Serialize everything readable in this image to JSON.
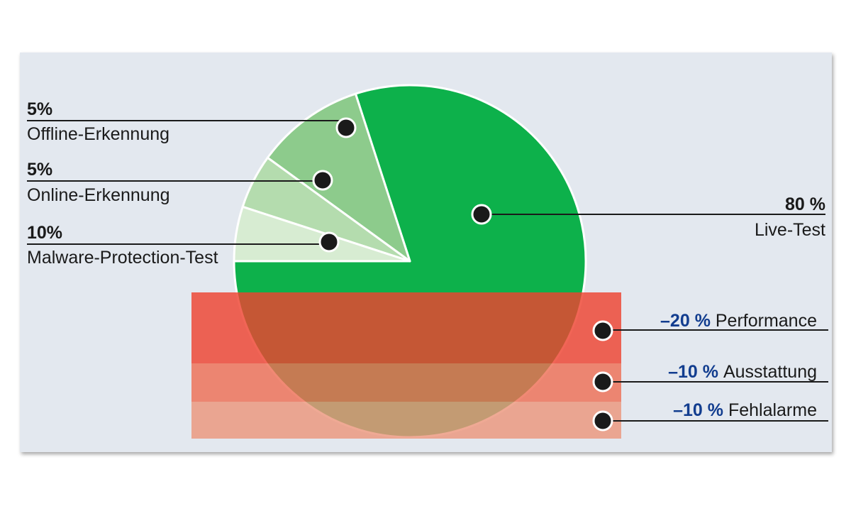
{
  "chart_data": {
    "type": "pie",
    "slices": [
      {
        "label": "Live-Test",
        "percent_text": "80 %",
        "value": 80,
        "color": "#0db14b"
      },
      {
        "label": "Malware-Protection-Test",
        "percent_text": "10%",
        "value": 10,
        "color": "#8dcb8c"
      },
      {
        "label": "Online-Erkennung",
        "percent_text": "5%",
        "value": 5,
        "color": "#b4dcae"
      },
      {
        "label": "Offline-Erkennung",
        "percent_text": "5%",
        "value": 5,
        "color": "#d7ecd2"
      }
    ],
    "deductions": [
      {
        "percent_text": "–20 %",
        "label": "Performance",
        "value": -20,
        "color": "#ee4331"
      },
      {
        "percent_text": "–10 %",
        "label": "Ausstattung",
        "value": -10,
        "color": "#ee6f56"
      },
      {
        "percent_text": "–10 %",
        "label": "Fehlalarme",
        "value": -10,
        "color": "#ec967c"
      }
    ]
  },
  "colors": {
    "background": "#e3e8ef",
    "dot": "#1a1a1a",
    "deduction_text": "#123d8f"
  }
}
